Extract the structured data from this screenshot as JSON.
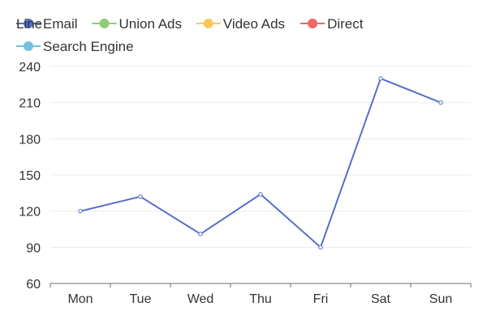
{
  "chart_data": {
    "type": "line",
    "title": "Line",
    "categories": [
      "Mon",
      "Tue",
      "Wed",
      "Thu",
      "Fri",
      "Sat",
      "Sun"
    ],
    "ylim": [
      60,
      240
    ],
    "yticks": [
      60,
      90,
      120,
      150,
      180,
      210,
      240
    ],
    "grid": true,
    "legend_position": "top-left",
    "legend": [
      {
        "name": "Email",
        "color": "#5470c6",
        "visible": true
      },
      {
        "name": "Union Ads",
        "color": "#91cc75",
        "visible": false
      },
      {
        "name": "Video Ads",
        "color": "#fac858",
        "visible": false
      },
      {
        "name": "Direct",
        "color": "#ee6666",
        "visible": false
      },
      {
        "name": "Search Engine",
        "color": "#73c0de",
        "visible": false
      }
    ],
    "series": [
      {
        "name": "Email",
        "color": "#5470c6",
        "values": [
          120,
          132,
          101,
          134,
          90,
          230,
          210
        ]
      }
    ]
  }
}
